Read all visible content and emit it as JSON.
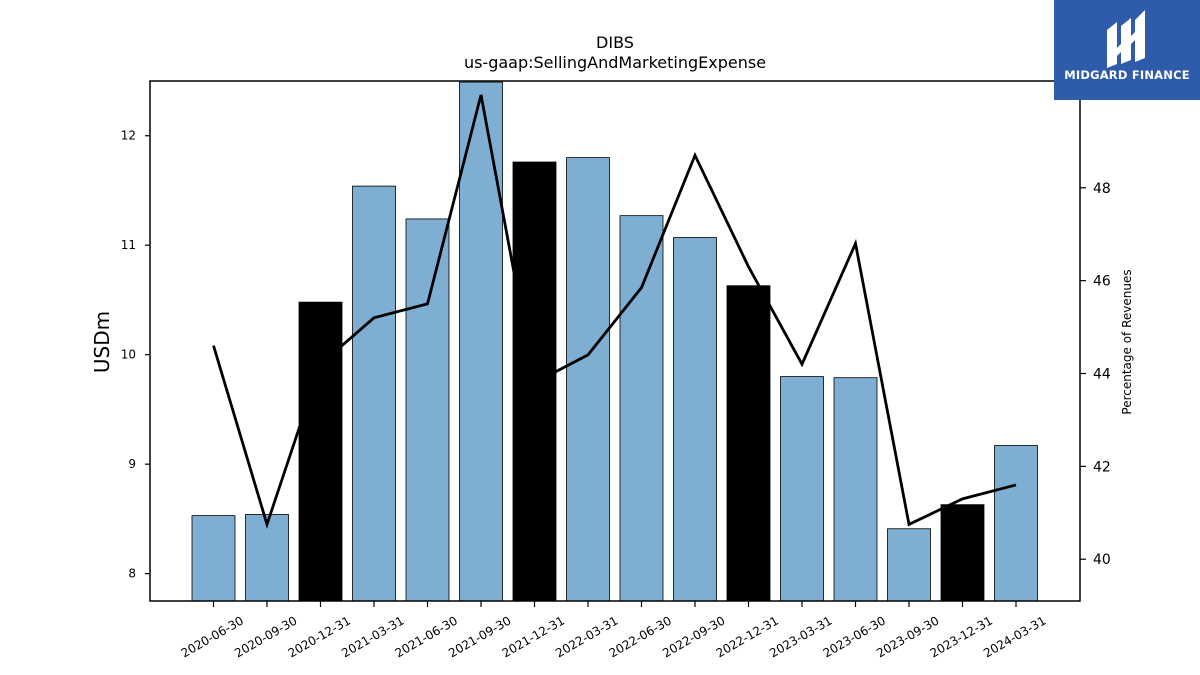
{
  "chart_data": {
    "type": "bar",
    "title": "DIBS",
    "subtitle": "us-gaap:SellingAndMarketingExpense",
    "ylabel": "USDm",
    "y2label": "Percentage of Revenues",
    "categories": [
      "2020-06-30",
      "2020-09-30",
      "2020-12-31",
      "2021-03-31",
      "2021-06-30",
      "2021-09-30",
      "2021-12-31",
      "2022-03-31",
      "2022-06-30",
      "2022-09-30",
      "2022-12-31",
      "2023-03-31",
      "2023-06-30",
      "2023-09-30",
      "2023-12-31",
      "2024-03-31"
    ],
    "values": [
      8.53,
      8.54,
      10.48,
      11.54,
      11.24,
      12.49,
      11.76,
      11.8,
      11.27,
      11.07,
      10.63,
      9.8,
      9.79,
      8.41,
      8.63,
      9.17
    ],
    "highlight": [
      false,
      false,
      true,
      false,
      false,
      false,
      true,
      false,
      false,
      false,
      true,
      false,
      false,
      false,
      true,
      false
    ],
    "percent_of_revenues": [
      44.6,
      40.75,
      44.2,
      45.2,
      45.5,
      50.0,
      43.8,
      44.4,
      45.85,
      48.7,
      46.3,
      44.2,
      46.8,
      40.75,
      41.3,
      41.6
    ],
    "ylim": [
      7.75,
      12.5
    ],
    "y2lim": [
      39.1,
      50.3
    ],
    "yticks": [
      8,
      9,
      10,
      11,
      12
    ],
    "y2ticks": [
      40,
      42,
      44,
      46,
      48
    ],
    "colors": {
      "bar": "#7eafd3",
      "highlight": "#000000",
      "line": "#000000",
      "edge": "#000000"
    }
  },
  "logo": {
    "text": "MIDGARD FINANCE",
    "background": "#2f5bab"
  }
}
